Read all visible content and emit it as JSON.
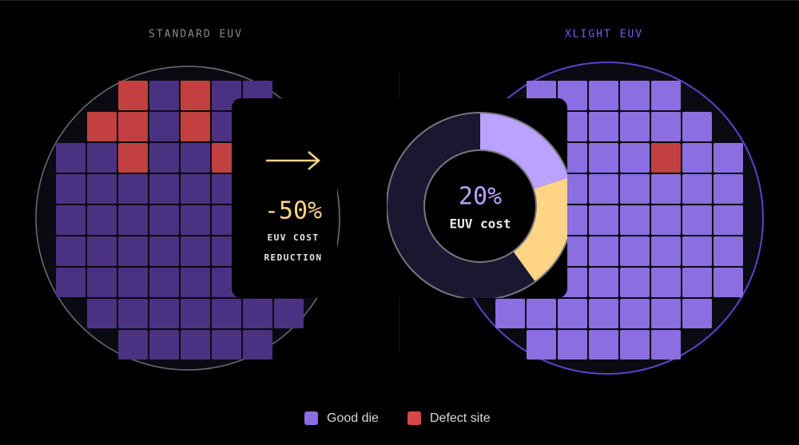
{
  "left_wafer": {
    "title": "STANDARD EUV"
  },
  "right_wafer": {
    "title": "XLIGHT EUV"
  },
  "reduction_card": {
    "value_label": "-50%",
    "label_lines": [
      "EUV COST",
      "REDUCTION"
    ]
  },
  "donut": {
    "label": "20%",
    "caption": "EUV cost",
    "segments": [
      {
        "value": 20,
        "color": "#bba2ff"
      },
      {
        "value": 20,
        "color": "#ffd485"
      },
      {
        "value": 60,
        "color": "#1b1730"
      }
    ]
  },
  "legend": [
    {
      "label": "Good die",
      "color": "#8b6fe0"
    },
    {
      "label": "Defect site",
      "color": "#d94848"
    }
  ]
}
